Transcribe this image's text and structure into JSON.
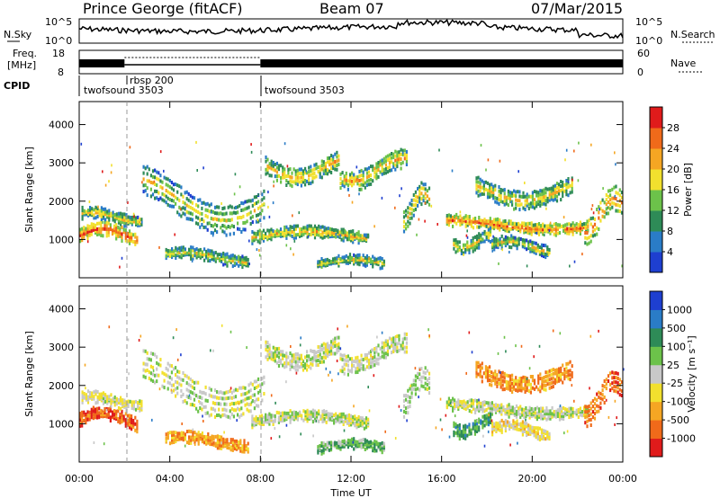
{
  "header": {
    "title": "Prince George (fitACF)",
    "beam": "Beam 07",
    "date": "07/Mar/2015"
  },
  "noise_panel": {
    "left_label": "N.Sky",
    "right_label": "N.Search",
    "left_ticks": [
      "10^5",
      "10^0"
    ],
    "right_ticks": [
      "10^5",
      "10^0"
    ]
  },
  "freq_panel": {
    "left_label_1": "Freq.",
    "left_label_2": "[MHz]",
    "left_ticks": [
      "18",
      "8"
    ],
    "right_label": "Nave",
    "right_ticks": [
      "60",
      "0"
    ]
  },
  "cpid": {
    "label": "CPID",
    "segments": [
      {
        "name": "twofsound 3503",
        "start_h": 0.0
      },
      {
        "name": "rbsp 200",
        "start_h": 2.0
      },
      {
        "name": "twofsound 3503",
        "start_h": 8.0
      }
    ]
  },
  "x_axis": {
    "label": "Time UT",
    "ticks": [
      "00:00",
      "04:00",
      "08:00",
      "12:00",
      "16:00",
      "20:00",
      "00:00"
    ],
    "range_h": [
      0,
      24
    ]
  },
  "chart_data": [
    {
      "type": "heatmap",
      "quantity": "power",
      "ylabel": "Slant Range [km]",
      "y_ticks": [
        "1000",
        "2000",
        "3000",
        "4000"
      ],
      "ylim": [
        0,
        4600
      ],
      "colorbar_label": "Power [dB]",
      "colorbar_ticks": [
        "4",
        "8",
        "12",
        "16",
        "20",
        "24",
        "28"
      ],
      "colorscale": [
        "#1e3fd0",
        "#2a7cc7",
        "#2e8b57",
        "#6cc24a",
        "#f2e02e",
        "#f5a623",
        "#f06a1a",
        "#e01b1b"
      ]
    },
    {
      "type": "heatmap",
      "quantity": "velocity",
      "ylabel": "Slant Range [km]",
      "y_ticks": [
        "1000",
        "2000",
        "3000",
        "4000"
      ],
      "ylim": [
        0,
        4600
      ],
      "colorbar_label": "Velocity [m s⁻¹]",
      "colorbar_ticks": [
        "1000",
        "500",
        "100",
        "25",
        "-25",
        "-100",
        "-500",
        "-1000"
      ],
      "colorscale": [
        "#1e3fd0",
        "#2a7cc7",
        "#2e8b57",
        "#6cc24a",
        "#c8c8c8",
        "#f2e02e",
        "#f5a623",
        "#f06a1a",
        "#e01b1b"
      ]
    }
  ],
  "bands": [
    {
      "t": [
        0,
        2.6
      ],
      "r": [
        850,
        1350
      ],
      "p": 0.85,
      "v": -0.8
    },
    {
      "t": [
        0.1,
        2.8
      ],
      "r": [
        1400,
        1750
      ],
      "p": 0.35,
      "v": -0.1
    },
    {
      "t": [
        2.8,
        8.2
      ],
      "r": [
        1300,
        2900
      ],
      "p": 0.3,
      "v": 0.0
    },
    {
      "t": [
        8.2,
        11.5
      ],
      "r": [
        2500,
        3300
      ],
      "p": 0.45,
      "v": 0.0
    },
    {
      "t": [
        11.5,
        14.5
      ],
      "r": [
        2400,
        3250
      ],
      "p": 0.5,
      "v": 0.0
    },
    {
      "t": [
        14.3,
        15.5
      ],
      "r": [
        1300,
        2400
      ],
      "p": 0.4,
      "v": 0.1
    },
    {
      "t": [
        7.6,
        12.8
      ],
      "r": [
        900,
        1250
      ],
      "p": 0.45,
      "v": 0.0
    },
    {
      "t": [
        3.8,
        7.5
      ],
      "r": [
        350,
        700
      ],
      "p": 0.35,
      "v": -0.55
    },
    {
      "t": [
        16.2,
        22.5
      ],
      "r": [
        1200,
        1550
      ],
      "p": 0.75,
      "v": 0.0
    },
    {
      "t": [
        17.5,
        21.8
      ],
      "r": [
        1900,
        2700
      ],
      "p": 0.4,
      "v": -0.6
    },
    {
      "t": [
        16.5,
        18.2
      ],
      "r": [
        700,
        1200
      ],
      "p": 0.4,
      "v": 0.4
    },
    {
      "t": [
        22.3,
        24
      ],
      "r": [
        1000,
        2300
      ],
      "p": 0.65,
      "v": -0.7
    },
    {
      "t": [
        10.5,
        13.5
      ],
      "r": [
        250,
        500
      ],
      "p": 0.3,
      "v": 0.3
    },
    {
      "t": [
        18.2,
        20.8
      ],
      "r": [
        600,
        1000
      ],
      "p": 0.3,
      "v": -0.2
    }
  ]
}
